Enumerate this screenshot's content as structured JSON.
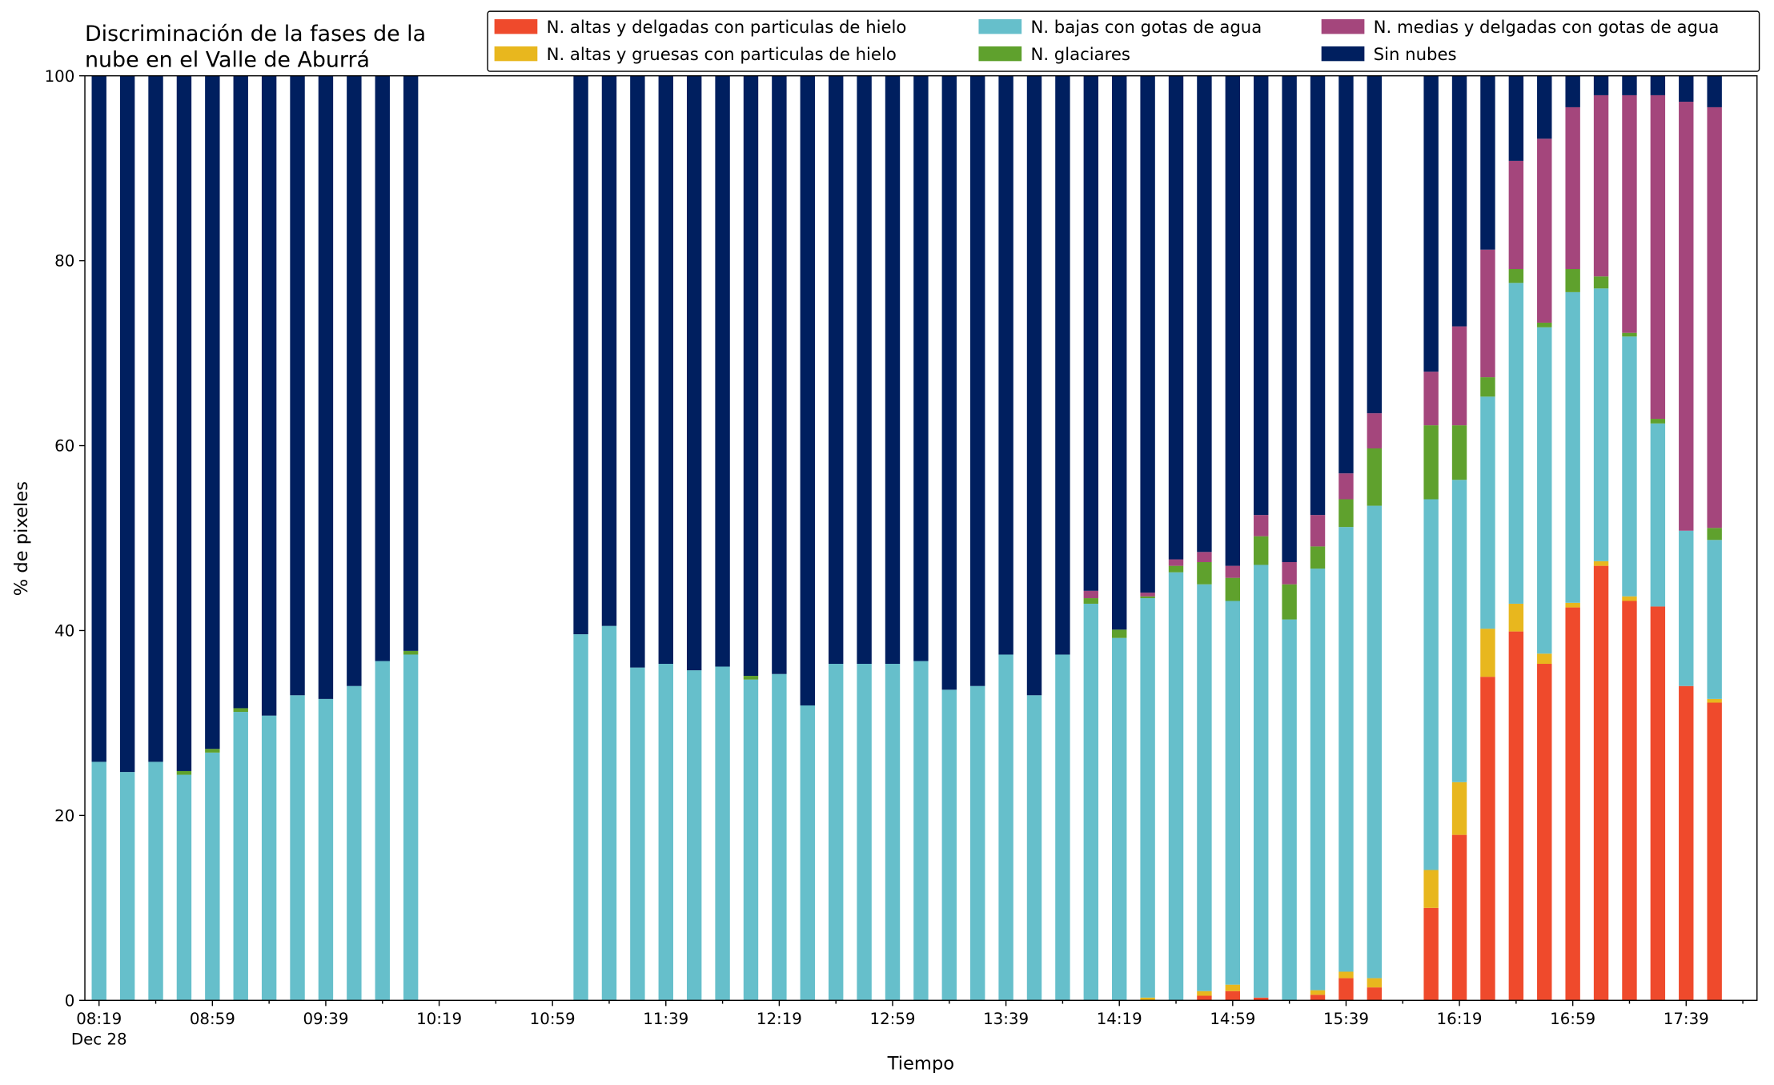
{
  "chart_data": {
    "type": "stacked_bar",
    "title": [
      "Discriminación de la fases de la",
      "nube en el Valle de Aburrá"
    ],
    "xlabel": "Tiempo",
    "ylabel": "% de pixeles",
    "date": "Dec 28",
    "x": [
      "08:19",
      "08:29",
      "08:39",
      "08:49",
      "08:59",
      "09:09",
      "09:19",
      "09:29",
      "09:39",
      "09:49",
      "09:59",
      "10:09",
      "11:09",
      "11:19",
      "11:29",
      "11:39",
      "11:49",
      "11:59",
      "12:09",
      "12:19",
      "12:29",
      "12:39",
      "12:49",
      "12:59",
      "13:09",
      "13:19",
      "13:29",
      "13:39",
      "13:49",
      "13:59",
      "14:09",
      "14:19",
      "14:29",
      "14:39",
      "14:49",
      "14:59",
      "15:09",
      "15:19",
      "15:29",
      "15:39",
      "15:49",
      "16:09",
      "16:19",
      "16:29",
      "16:39",
      "16:49",
      "16:59",
      "17:09",
      "17:19",
      "17:29",
      "17:39",
      "17:49"
    ],
    "xlim": [
      "08:14",
      "18:04"
    ],
    "xticks": [
      "08:19",
      "08:59",
      "09:39",
      "10:19",
      "10:59",
      "11:39",
      "12:19",
      "12:59",
      "13:39",
      "14:19",
      "14:59",
      "15:39",
      "16:19",
      "16:59",
      "17:39"
    ],
    "xminorticks": [
      "08:39",
      "09:19",
      "09:59",
      "10:39",
      "11:19",
      "11:59",
      "12:39",
      "13:19",
      "13:59",
      "14:39",
      "15:19",
      "15:59",
      "16:39",
      "17:19",
      "17:59"
    ],
    "ylim": [
      0,
      100
    ],
    "yticks": [
      0,
      20,
      40,
      60,
      80,
      100
    ],
    "legend": "top-right",
    "series": [
      {
        "name": "N. altas y delgadas con particulas de hielo",
        "color": "#ef4a2c",
        "values": [
          0,
          0,
          0,
          0,
          0,
          0,
          0,
          0,
          0,
          0,
          0,
          0,
          0,
          0,
          0,
          0,
          0,
          0,
          0,
          0,
          0,
          0,
          0,
          0,
          0,
          0,
          0,
          0,
          0,
          0,
          0,
          0,
          0,
          0,
          0.5,
          1.0,
          0.3,
          0,
          0.6,
          2.4,
          1.4,
          10.0,
          17.9,
          35.0,
          39.9,
          36.4,
          42.5,
          47.0,
          43.2,
          42.6,
          34.0,
          32.2
        ]
      },
      {
        "name": "N. altas y gruesas con particulas de hielo",
        "color": "#e8b71e",
        "values": [
          0,
          0,
          0,
          0,
          0,
          0,
          0,
          0,
          0,
          0,
          0,
          0,
          0,
          0,
          0,
          0,
          0,
          0,
          0,
          0,
          0,
          0,
          0,
          0,
          0,
          0,
          0,
          0,
          0,
          0,
          0,
          0,
          0.3,
          0,
          0.5,
          0.7,
          0,
          0,
          0.5,
          0.7,
          1.0,
          4.1,
          5.7,
          5.2,
          3.0,
          1.1,
          0.5,
          0.5,
          0.5,
          0,
          0,
          0.4
        ]
      },
      {
        "name": "N. bajas con gotas de agua",
        "color": "#66bfcb",
        "values": [
          25.8,
          24.7,
          25.8,
          24.4,
          26.8,
          31.2,
          30.8,
          33.0,
          32.6,
          34.0,
          36.7,
          37.4,
          39.6,
          40.5,
          36.0,
          36.4,
          35.7,
          36.1,
          34.7,
          35.3,
          31.9,
          36.4,
          36.4,
          36.4,
          36.7,
          33.6,
          34.0,
          37.4,
          33.0,
          37.4,
          42.9,
          39.2,
          43.2,
          46.3,
          44.0,
          41.5,
          46.8,
          41.2,
          45.6,
          48.1,
          51.1,
          40.1,
          32.7,
          25.1,
          34.7,
          35.3,
          33.6,
          29.5,
          28.1,
          19.8,
          16.8,
          17.2
        ]
      },
      {
        "name": "N. glaciares",
        "color": "#5fa12d",
        "values": [
          0,
          0,
          0,
          0.4,
          0.4,
          0.4,
          0,
          0,
          0,
          0,
          0,
          0.4,
          0,
          0,
          0,
          0,
          0,
          0,
          0.4,
          0,
          0,
          0,
          0,
          0,
          0,
          0,
          0,
          0,
          0,
          0,
          0.6,
          0.9,
          0.2,
          0.7,
          2.4,
          2.5,
          3.1,
          3.8,
          2.4,
          3.0,
          6.2,
          8.0,
          5.9,
          2.1,
          1.5,
          0.5,
          2.5,
          1.3,
          0.4,
          0.5,
          0,
          1.3
        ]
      },
      {
        "name": "N. medias y delgadas con gotas de agua",
        "color": "#a4467c",
        "values": [
          0,
          0,
          0,
          0,
          0,
          0,
          0,
          0,
          0,
          0,
          0,
          0,
          0,
          0,
          0,
          0,
          0,
          0,
          0,
          0,
          0,
          0,
          0,
          0,
          0,
          0,
          0,
          0,
          0,
          0,
          0.8,
          0,
          0.4,
          0.7,
          1.1,
          1.3,
          2.3,
          2.4,
          3.4,
          2.8,
          3.8,
          5.8,
          10.7,
          13.8,
          11.7,
          19.9,
          17.5,
          19.6,
          25.7,
          35.0,
          46.4,
          45.5
        ]
      },
      {
        "name": "Sin nubes",
        "color": "#001f5f",
        "values": [
          74.2,
          75.3,
          74.2,
          75.2,
          72.8,
          68.4,
          69.2,
          67.0,
          67.4,
          66.0,
          63.3,
          62.2,
          60.4,
          59.5,
          64.0,
          63.6,
          64.3,
          63.9,
          64.9,
          64.7,
          68.1,
          63.6,
          63.6,
          63.6,
          63.3,
          66.4,
          66.0,
          62.6,
          67.0,
          62.6,
          55.7,
          59.9,
          55.9,
          52.3,
          51.5,
          53.0,
          47.5,
          52.6,
          47.5,
          43.0,
          36.5,
          32.0,
          27.1,
          18.8,
          9.2,
          6.8,
          3.4,
          2.1,
          2.1,
          2.1,
          2.8,
          3.4
        ]
      }
    ]
  }
}
